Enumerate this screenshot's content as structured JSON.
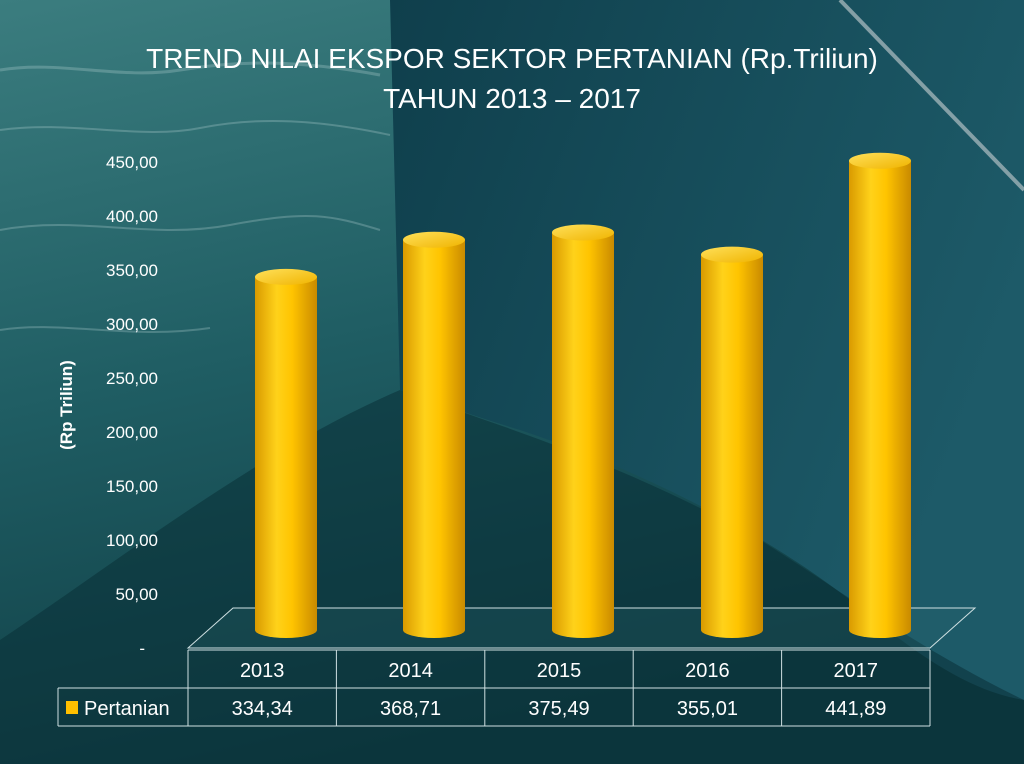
{
  "chart_data": {
    "type": "bar",
    "title_line1": "TREND NILAI EKSPOR SEKTOR PERTANIAN (Rp.Triliun)",
    "title_line2": "TAHUN 2013 – 2017",
    "ylabel": "(Rp Triliun)",
    "xlabel": "",
    "ylim": [
      0,
      450
    ],
    "yticks": [
      "-",
      "50,00",
      "100,00",
      "150,00",
      "200,00",
      "250,00",
      "300,00",
      "350,00",
      "400,00",
      "450,00"
    ],
    "categories": [
      "2013",
      "2014",
      "2015",
      "2016",
      "2017"
    ],
    "series": [
      {
        "name": "Pertanian",
        "values": [
          334.34,
          368.71,
          375.49,
          355.01,
          441.89
        ],
        "labels": [
          "334,34",
          "368,71",
          "375,49",
          "355,01",
          "441,89"
        ],
        "color": "#FFC000"
      }
    ],
    "grid": false,
    "legend": "bottom-left data table"
  },
  "colors": {
    "sea_light": "#2f6f72",
    "sea_dark": "#0d3a42",
    "hull": "#124652",
    "text": "#ffffff",
    "bar": "#FFC000"
  }
}
